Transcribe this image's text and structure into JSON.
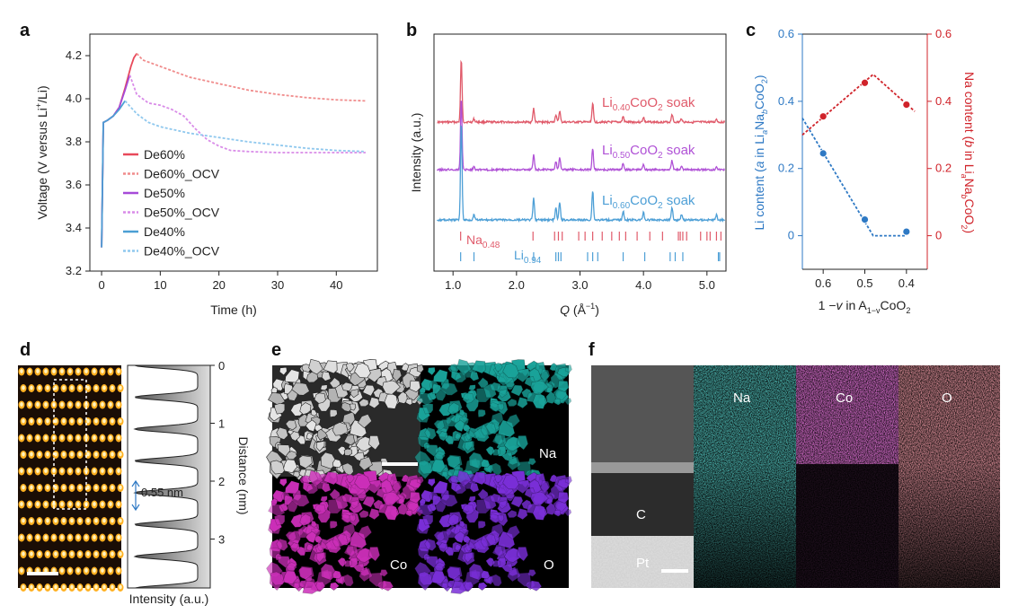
{
  "panels": {
    "a": "a",
    "b": "b",
    "c": "c",
    "d": "d",
    "e": "e",
    "f": "f"
  },
  "colors": {
    "de60": "#e8495a",
    "de60_ocv": "#f08c8c",
    "de50": "#a64ad8",
    "de50_ocv": "#d98ce8",
    "de40": "#4b9fd4",
    "de40_ocv": "#8fc8ee",
    "soak40": "#e05a6a",
    "soak50": "#b052d6",
    "soak60": "#4d9fd6",
    "li_axis": "#2e79c4",
    "na_axis": "#d0232a",
    "na_map": "#1aa39a",
    "co_map": "#cc2fb9",
    "o_map_e": "#7a2fd8",
    "o_map_f": "#c94b58"
  },
  "chart_data": [
    {
      "panel": "a",
      "type": "line",
      "xlabel": "Time (h)",
      "ylabel_parts": [
        "Voltage (V versus Li",
        "+",
        "/Li)"
      ],
      "xlim": [
        -2,
        47
      ],
      "ylim": [
        3.2,
        4.3
      ],
      "xticks": [
        0,
        10,
        20,
        30,
        40
      ],
      "yticks": [
        3.2,
        3.4,
        3.6,
        3.8,
        4.0,
        4.2
      ],
      "ytick_labels": [
        "3.2",
        "3.4",
        "3.6",
        "3.8",
        "4.0",
        "4.2"
      ],
      "legend_position": "center-left",
      "series": [
        {
          "name": "De60%",
          "style": "solid",
          "color_key": "de60",
          "x": [
            0,
            0.3,
            1,
            2,
            3,
            4,
            5,
            5.5,
            6
          ],
          "y": [
            3.31,
            3.89,
            3.9,
            3.92,
            3.96,
            4.05,
            4.15,
            4.19,
            4.21
          ]
        },
        {
          "name": "De60%_OCV",
          "style": "dashed",
          "color_key": "de60_ocv",
          "x": [
            6,
            7,
            8,
            10,
            12,
            15,
            20,
            25,
            30,
            35,
            40,
            45
          ],
          "y": [
            4.21,
            4.18,
            4.17,
            4.15,
            4.13,
            4.1,
            4.07,
            4.04,
            4.02,
            4.005,
            3.995,
            3.99
          ]
        },
        {
          "name": "De50%",
          "style": "solid",
          "color_key": "de50",
          "x": [
            0,
            0.3,
            1,
            2,
            3,
            4,
            4.8
          ],
          "y": [
            3.31,
            3.89,
            3.9,
            3.92,
            3.96,
            4.04,
            4.11
          ]
        },
        {
          "name": "De50%_OCV",
          "style": "dashed",
          "color_key": "de50_ocv",
          "x": [
            4.8,
            6,
            8,
            10,
            12,
            14,
            16,
            18,
            20,
            22,
            25,
            30,
            35,
            40,
            45
          ],
          "y": [
            4.11,
            4.02,
            3.98,
            3.97,
            3.95,
            3.92,
            3.86,
            3.81,
            3.78,
            3.76,
            3.755,
            3.75,
            3.75,
            3.75,
            3.75
          ]
        },
        {
          "name": "De40%",
          "style": "solid",
          "color_key": "de40",
          "x": [
            0,
            0.3,
            1,
            2,
            3,
            4
          ],
          "y": [
            3.31,
            3.89,
            3.9,
            3.92,
            3.95,
            3.99
          ]
        },
        {
          "name": "De40%_OCV",
          "style": "dashed",
          "color_key": "de40_ocv",
          "x": [
            4,
            6,
            8,
            10,
            15,
            20,
            25,
            30,
            35,
            40,
            45
          ],
          "y": [
            3.99,
            3.93,
            3.89,
            3.87,
            3.84,
            3.82,
            3.8,
            3.785,
            3.77,
            3.76,
            3.755
          ]
        }
      ]
    },
    {
      "panel": "b",
      "type": "line",
      "xlabel_parts": [
        "Q",
        " (Å",
        "−1",
        ")"
      ],
      "ylabel": "Intensity (a.u.)",
      "xlim": [
        0.7,
        5.3
      ],
      "xticks": [
        1.0,
        2.0,
        3.0,
        4.0,
        5.0
      ],
      "xtick_labels": [
        "1.0",
        "2.0",
        "3.0",
        "4.0",
        "5.0"
      ],
      "peaks": [
        {
          "q": 1.13,
          "h": 1.0
        },
        {
          "q": 1.33,
          "h": 0.05
        },
        {
          "q": 2.27,
          "h": 0.22
        },
        {
          "q": 2.62,
          "h": 0.12
        },
        {
          "q": 2.68,
          "h": 0.18
        },
        {
          "q": 3.2,
          "h": 0.3
        },
        {
          "q": 3.68,
          "h": 0.09
        },
        {
          "q": 4.0,
          "h": 0.08
        },
        {
          "q": 4.45,
          "h": 0.13
        },
        {
          "q": 4.6,
          "h": 0.06
        },
        {
          "q": 5.15,
          "h": 0.05
        }
      ],
      "series": [
        {
          "label_parts": [
            "Li",
            "0.40",
            "CoO",
            "2",
            " soak"
          ],
          "color_key": "soak40"
        },
        {
          "label_parts": [
            "Li",
            "0.50",
            "CoO",
            "2",
            " soak"
          ],
          "color_key": "soak50"
        },
        {
          "label_parts": [
            "Li",
            "0.60",
            "CoO",
            "2",
            " soak"
          ],
          "color_key": "soak60"
        }
      ],
      "reference_na": {
        "label_parts": [
          "Na",
          "0.48"
        ],
        "color_key": "soak40",
        "q": [
          1.12,
          2.26,
          2.6,
          2.66,
          2.72,
          2.98,
          3.08,
          3.2,
          3.35,
          3.5,
          3.62,
          3.72,
          3.9,
          4.1,
          4.3,
          4.55,
          4.58,
          4.62,
          4.68,
          4.9,
          5.0,
          5.05,
          5.15,
          5.22
        ]
      },
      "reference_li": {
        "label_parts": [
          "Li",
          "0.94"
        ],
        "color_key": "soak60",
        "q": [
          1.12,
          1.33,
          2.27,
          2.62,
          2.66,
          2.7,
          3.12,
          3.2,
          3.28,
          3.68,
          4.02,
          4.42,
          4.5,
          4.62,
          5.18,
          5.2
        ]
      }
    },
    {
      "panel": "c",
      "type": "scatter",
      "xlabel_parts": [
        "1 −",
        "v",
        " in A",
        "1−v",
        "CoO",
        "2"
      ],
      "ylabel_left_parts": [
        "Li content (",
        "a",
        " in Li",
        "a",
        "Na",
        "b",
        "CoO",
        "2",
        ")"
      ],
      "ylabel_right_parts": [
        "Na content (",
        "b",
        " in Li",
        "a",
        "Na",
        "b",
        "CoO",
        "2",
        ")"
      ],
      "xlim": [
        0.65,
        0.35
      ],
      "xticks": [
        0.6,
        0.5,
        0.4
      ],
      "xtick_labels": [
        "0.6",
        "0.5",
        "0.4"
      ],
      "ylim_left": [
        -0.1,
        0.6
      ],
      "ylim_right": [
        -0.1,
        0.6
      ],
      "yticks_left": [
        0,
        0.2,
        0.4,
        0.6
      ],
      "ytick_labels_left": [
        "0",
        "0.2",
        "0.4",
        "0.6"
      ],
      "yticks_right": [
        0,
        0.2,
        0.4,
        0.6
      ],
      "ytick_labels_right": [
        "0",
        "0.2",
        "0.4",
        "0.6"
      ],
      "li_points": {
        "x": [
          0.6,
          0.5,
          0.4
        ],
        "y": [
          0.245,
          0.048,
          0.012
        ],
        "color_key": "li_axis"
      },
      "li_fit": {
        "x": [
          0.65,
          0.48,
          0.4
        ],
        "y": [
          0.35,
          0.0,
          0.0
        ],
        "color_key": "li_axis"
      },
      "na_points": {
        "x": [
          0.6,
          0.5,
          0.4
        ],
        "y": [
          0.355,
          0.455,
          0.39
        ],
        "color_key": "na_axis"
      },
      "na_fit": {
        "x": [
          0.65,
          0.48,
          0.38
        ],
        "y": [
          0.3,
          0.48,
          0.37
        ],
        "color_key": "na_axis"
      }
    }
  ],
  "panel_d": {
    "yticks": [
      "0",
      "1",
      "2",
      "3"
    ],
    "ylabel": "Distance (nm)",
    "xlabel": "Intensity (a.u.)",
    "spacing_label": "0.55 nm"
  },
  "panel_e": {
    "labels": {
      "na": "Na",
      "co": "Co",
      "o": "O"
    }
  },
  "panel_f": {
    "labels": {
      "c": "C",
      "pt": "Pt",
      "na": "Na",
      "co": "Co",
      "o": "O"
    }
  }
}
